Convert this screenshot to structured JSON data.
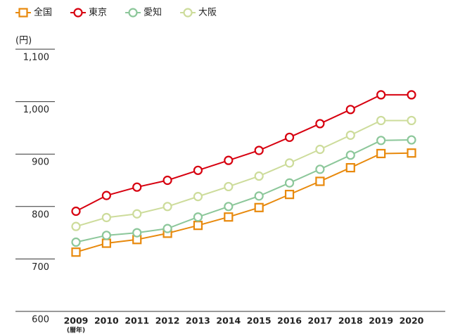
{
  "chart_data": {
    "type": "line",
    "y_label": "(円)",
    "x_label": "(暦年)",
    "categories": [
      "2009",
      "2010",
      "2011",
      "2012",
      "2013",
      "2014",
      "2015",
      "2016",
      "2017",
      "2018",
      "2019",
      "2020"
    ],
    "series": [
      {
        "name": "全国",
        "color": "#e8890c",
        "marker": "square",
        "values": [
          713,
          730,
          737,
          749,
          764,
          780,
          798,
          823,
          848,
          874,
          901,
          902
        ]
      },
      {
        "name": "東京",
        "color": "#d7000f",
        "marker": "circle",
        "values": [
          791,
          821,
          837,
          850,
          869,
          888,
          907,
          932,
          958,
          985,
          1013,
          1013
        ]
      },
      {
        "name": "愛知",
        "color": "#8cc79a",
        "marker": "circle",
        "values": [
          732,
          745,
          750,
          758,
          780,
          800,
          820,
          845,
          871,
          898,
          926,
          927
        ]
      },
      {
        "name": "大阪",
        "color": "#cddc9b",
        "marker": "circle",
        "values": [
          762,
          779,
          786,
          800,
          819,
          838,
          858,
          883,
          909,
          936,
          964,
          964
        ]
      }
    ],
    "ylim": [
      600,
      1100
    ],
    "yticks": [
      600,
      700,
      800,
      900,
      {
        "value": 1000,
        "label": "1,000"
      },
      {
        "value": 1100,
        "label": "1,100"
      }
    ],
    "legend": "top-left"
  }
}
